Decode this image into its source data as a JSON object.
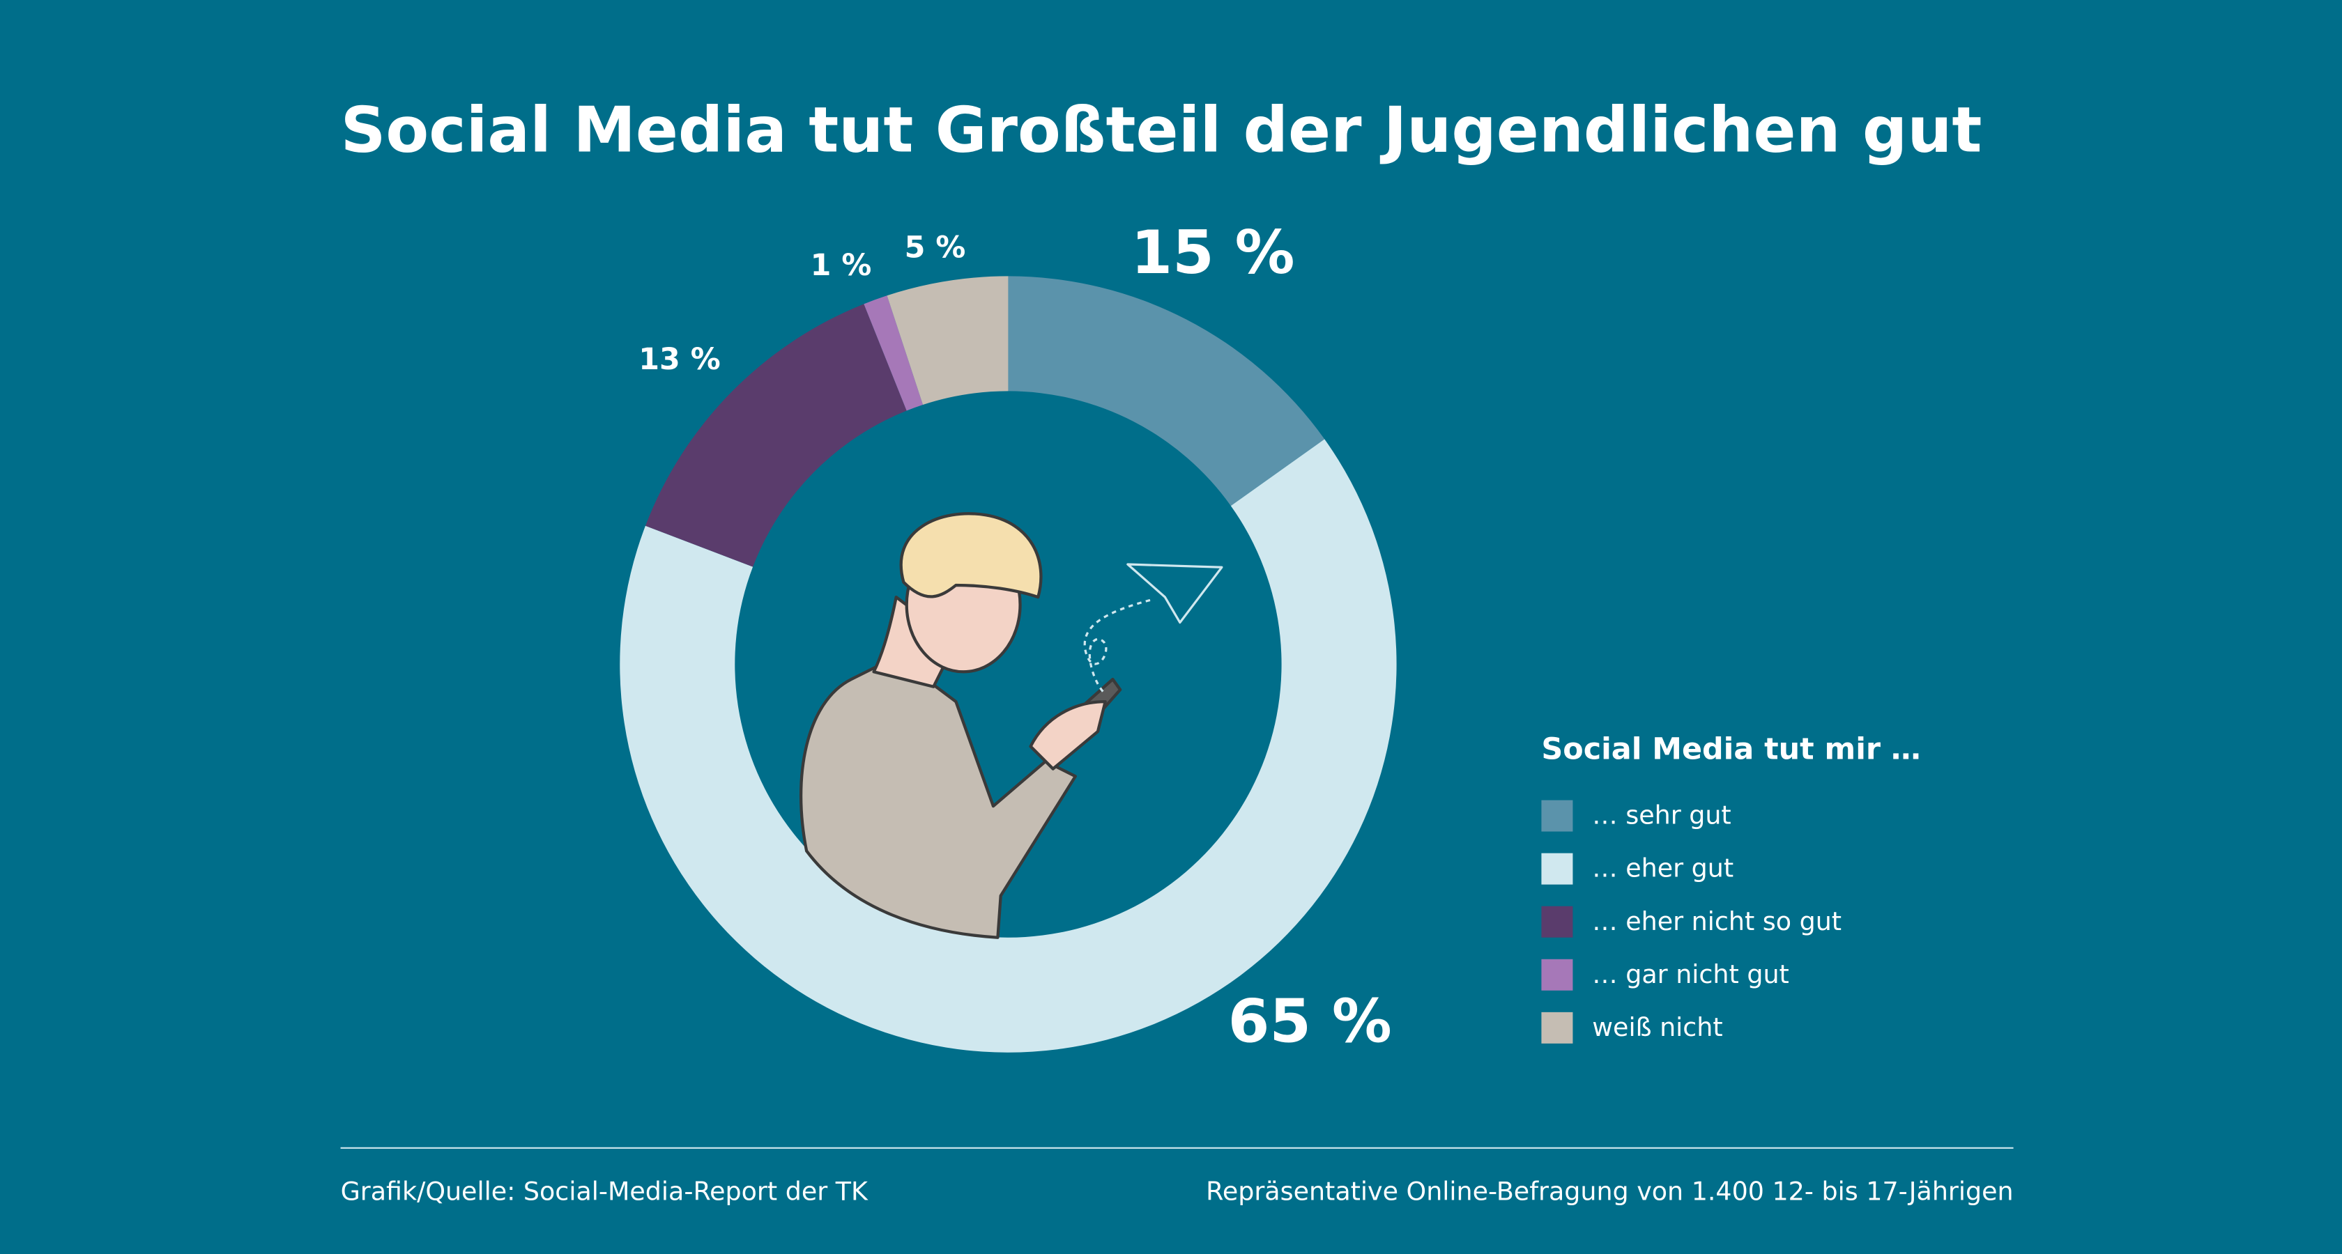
{
  "chart_data": {
    "type": "donut",
    "title": "Social Media tut Großteil der Jugendlichen gut",
    "categories": [
      "… sehr gut",
      "… eher gut",
      "… eher nicht so gut",
      "… gar nicht gut",
      "weiß nicht"
    ],
    "values": [
      15,
      65,
      13,
      1,
      5
    ],
    "value_labels": [
      "15 %",
      "65 %",
      "13 %",
      "1 %",
      "5 %"
    ],
    "colors": [
      "#5b93ab",
      "#d0e8ef",
      "#5a3c6c",
      "#a678b8",
      "#c5bdb3"
    ],
    "legend_title": "Social Media tut mir …"
  },
  "footer": {
    "source": "Grafik/Quelle: Social-Media-Report der TK",
    "note": "Repräsentative Online-Befragung von 1.400 12- bis 17-Jährigen"
  }
}
